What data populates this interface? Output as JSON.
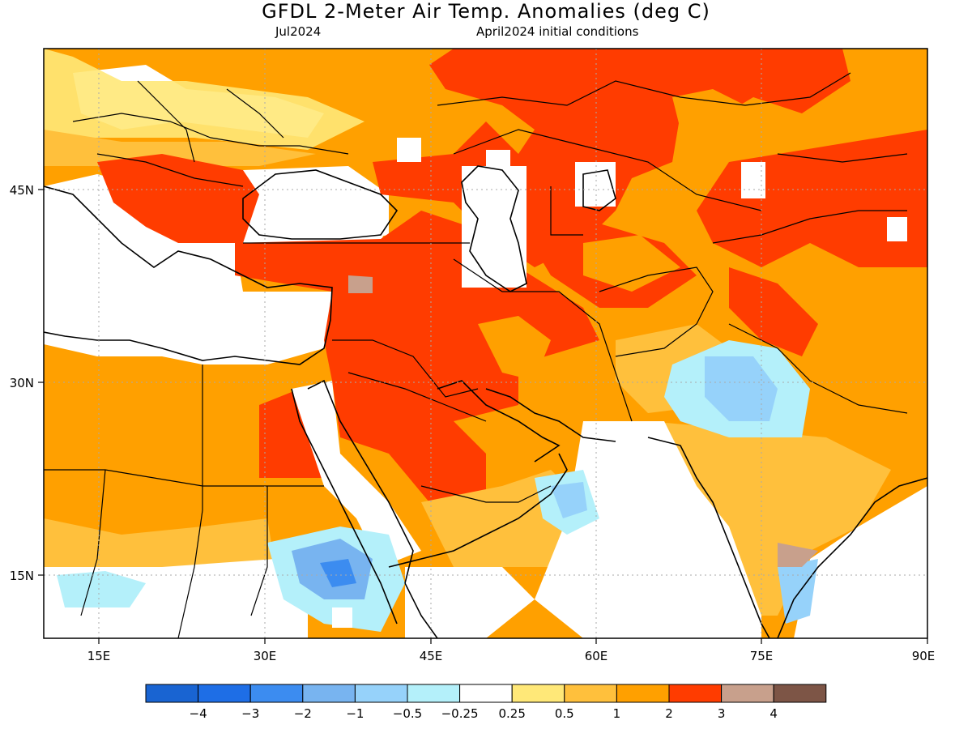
{
  "title": "GFDL 2-Meter Air Temp. Anomalies (deg C)",
  "valid_month": "Jul2024",
  "init_conditions": "April2024 initial conditions",
  "map": {
    "lon_ticks": [
      "15E",
      "30E",
      "45E",
      "60E",
      "75E",
      "90E"
    ],
    "lat_ticks": [
      "45N",
      "30N",
      "15N"
    ],
    "extent": {
      "lon": [
        10,
        90
      ],
      "lat": [
        10,
        56
      ]
    }
  },
  "colorbar": {
    "colors": [
      "#1964d2",
      "#1e6ee6",
      "#3c8cf0",
      "#78b4f0",
      "#96d2fa",
      "#b4f0fa",
      "#ffffff",
      "#ffe878",
      "#ffc03c",
      "#ffa000",
      "#ff3c00",
      "#c8a08c",
      "#7d5546"
    ],
    "labels": [
      "-4",
      "-3",
      "-2",
      "-1",
      "-0.5",
      "-0.25",
      "0.25",
      "0.5",
      "1",
      "2",
      "3",
      "4"
    ]
  }
}
